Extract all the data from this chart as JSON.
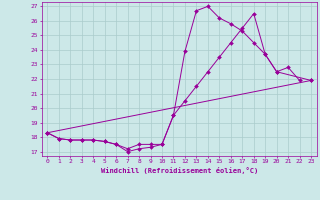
{
  "xlabel": "Windchill (Refroidissement éolien,°C)",
  "line_color": "#990099",
  "bg_color": "#cce8e8",
  "grid_color": "#aacccc",
  "xlim": [
    -0.5,
    23.5
  ],
  "ylim": [
    16.7,
    27.3
  ],
  "yticks": [
    17,
    18,
    19,
    20,
    21,
    22,
    23,
    24,
    25,
    26,
    27
  ],
  "xticks": [
    0,
    1,
    2,
    3,
    4,
    5,
    6,
    7,
    8,
    9,
    10,
    11,
    12,
    13,
    14,
    15,
    16,
    17,
    18,
    19,
    20,
    21,
    22,
    23
  ],
  "line1_x": [
    0,
    1,
    2,
    3,
    4,
    5,
    6,
    7,
    8,
    9,
    10,
    11,
    12,
    13,
    14,
    15,
    16,
    17,
    18,
    19,
    20,
    21,
    22
  ],
  "line1_y": [
    18.3,
    17.9,
    17.8,
    17.8,
    17.8,
    17.7,
    17.5,
    17.0,
    17.2,
    17.3,
    17.5,
    19.5,
    23.9,
    26.7,
    27.0,
    26.2,
    25.8,
    25.3,
    24.5,
    23.7,
    22.5,
    22.8,
    21.9
  ],
  "line2_x": [
    0,
    1,
    2,
    3,
    4,
    5,
    6,
    7,
    8,
    9,
    10,
    11,
    12,
    13,
    14,
    15,
    16,
    17,
    18,
    19,
    20,
    23
  ],
  "line2_y": [
    18.3,
    17.9,
    17.8,
    17.8,
    17.8,
    17.7,
    17.5,
    17.2,
    17.5,
    17.5,
    17.5,
    19.5,
    20.5,
    21.5,
    22.5,
    23.5,
    24.5,
    25.5,
    26.5,
    23.7,
    22.5,
    21.9
  ],
  "line3_x": [
    0,
    23
  ],
  "line3_y": [
    18.3,
    21.9
  ],
  "marker": "D",
  "marker_size": 2.0,
  "linewidth": 0.7
}
